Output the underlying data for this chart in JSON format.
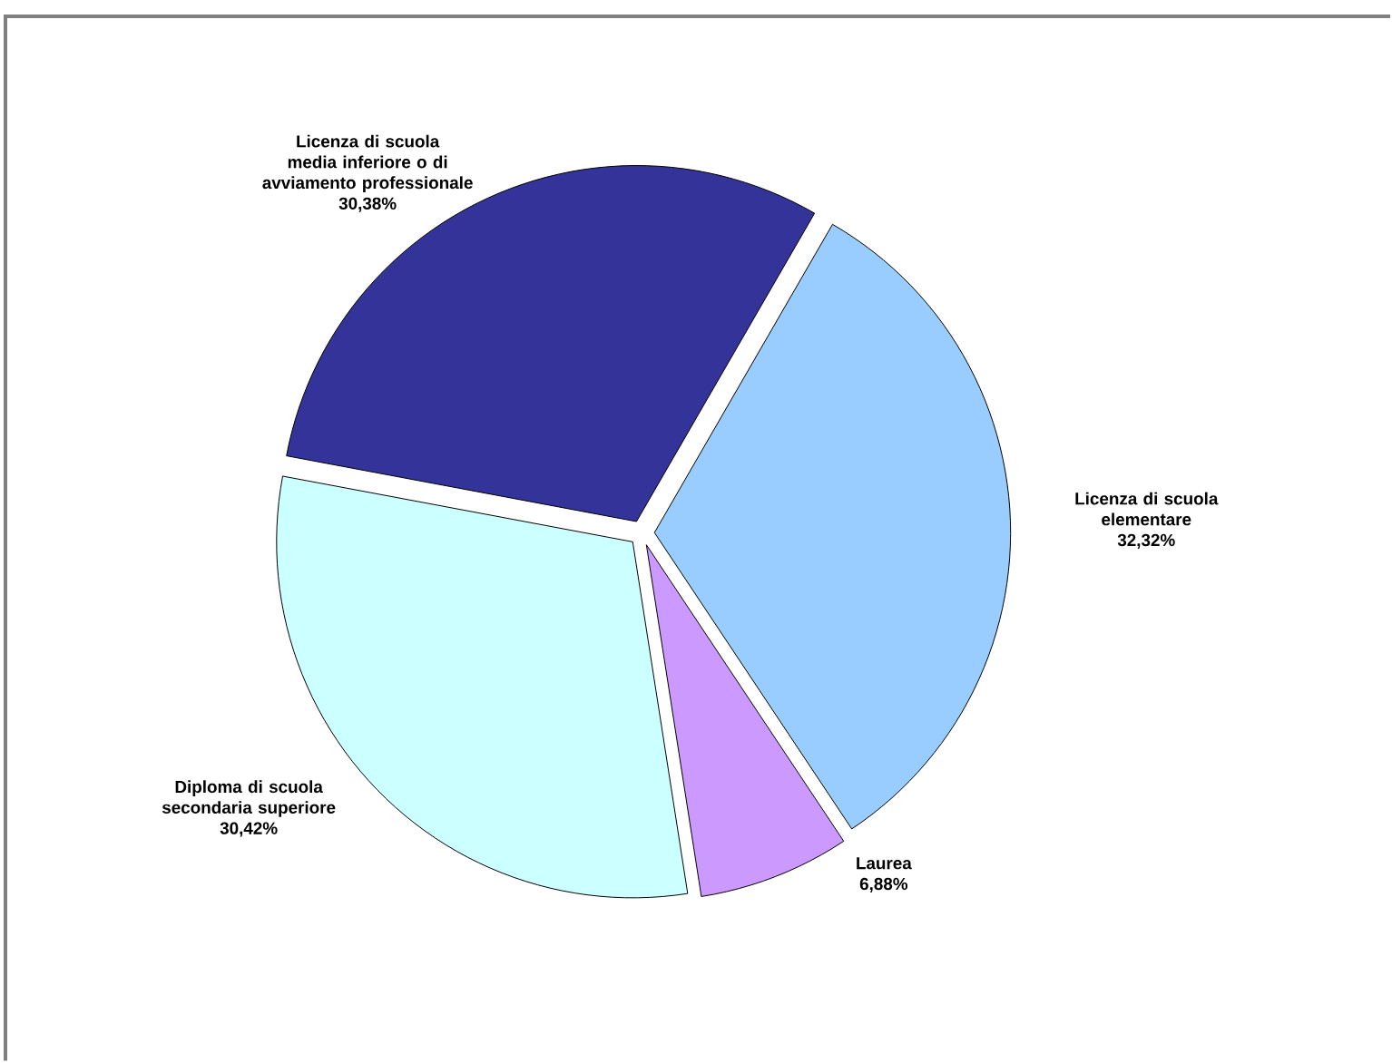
{
  "chart_data": {
    "type": "pie",
    "categories": [
      "Licenza di scuola elementare",
      "Laurea",
      "Diploma di scuola secondaria superiore",
      "Licenza di scuola media inferiore o di avviamento professionale"
    ],
    "values": [
      32.32,
      6.88,
      30.42,
      30.38
    ],
    "value_labels": [
      "32,32%",
      "6,88%",
      "30,42%",
      "30,38%"
    ],
    "colors": [
      "#99ccff",
      "#cc99ff",
      "#ccffff",
      "#333399"
    ]
  }
}
